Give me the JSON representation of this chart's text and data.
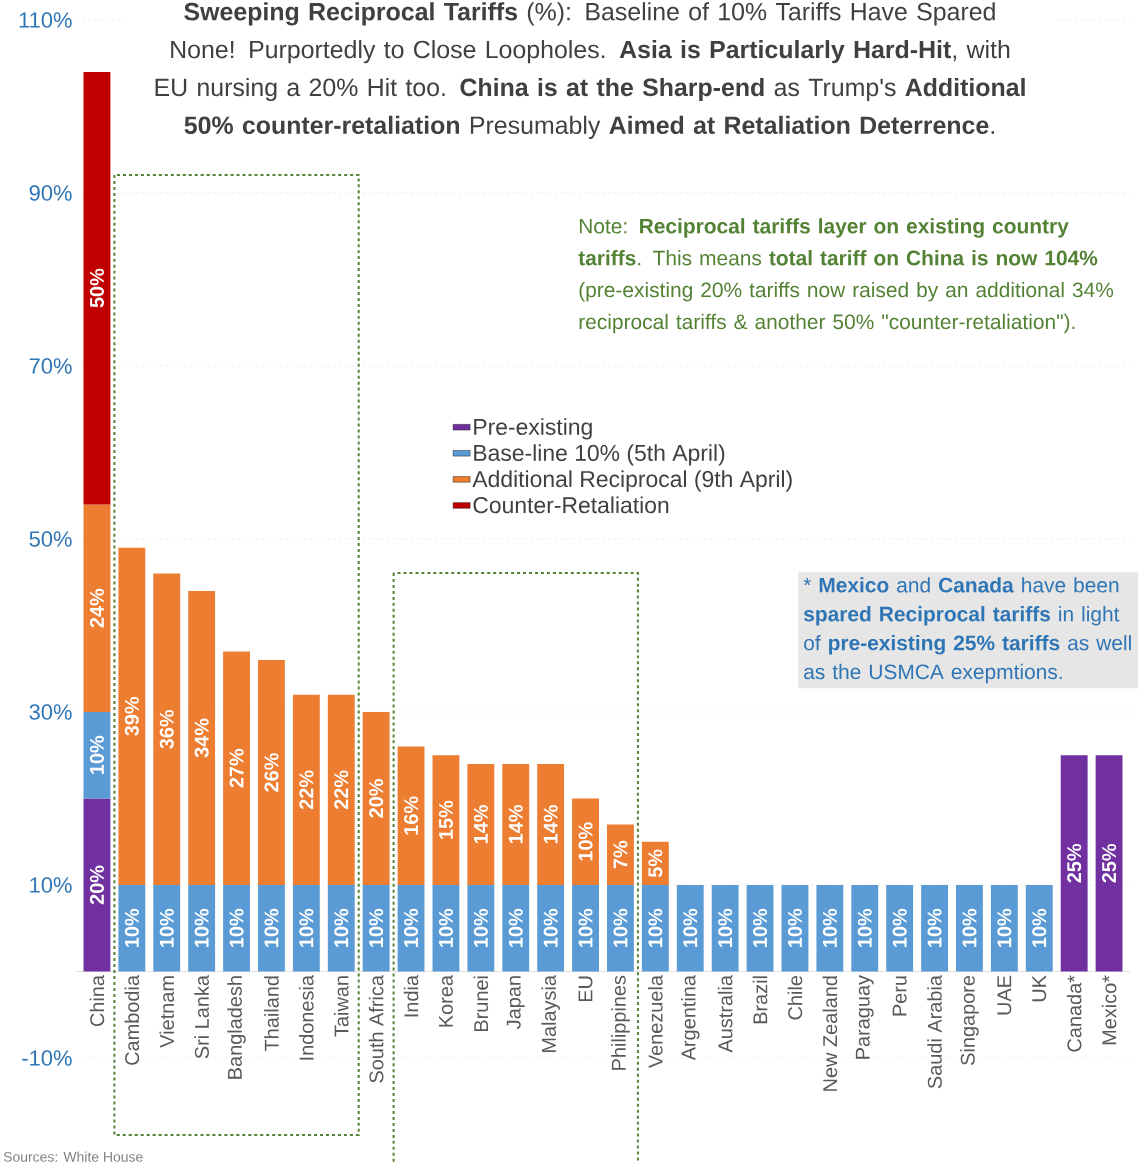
{
  "chart_data": {
    "type": "bar",
    "stacked": true,
    "title": "**Sweeping Reciprocal Tariffs** (%): Baseline of 10%  Tariffs Have Spared None! Purportedly to Close Loopholes. **Asia is Particularly Hard-Hit**, with EU nursing a 20% Hit too. **China is at the Sharp-end** as Trump's **Additional 50% counter-retaliation** Presumably **Aimed at Retaliation Deterrence**.",
    "categories": [
      "China",
      "Cambodia",
      "Vietnam",
      "Sri Lanka",
      "Bangladesh",
      "Thailand",
      "Indonesia",
      "Taiwan",
      "South Africa",
      "India",
      "Korea",
      "Brunei",
      "Japan",
      "Malaysia",
      "EU",
      "Philippines",
      "Venezuela",
      "Argentina",
      "Australia",
      "Brazil",
      "Chile",
      "New Zealand",
      "Paraguay",
      "Peru",
      "Saudi Arabia",
      "Singapore",
      "UAE",
      "UK",
      "Canada*",
      "Mexico*"
    ],
    "series": [
      {
        "name": "Pre-existing",
        "color": "#7030a0",
        "values": [
          20,
          null,
          null,
          null,
          null,
          null,
          null,
          null,
          null,
          null,
          null,
          null,
          null,
          null,
          null,
          null,
          null,
          null,
          null,
          null,
          null,
          null,
          null,
          null,
          null,
          null,
          null,
          null,
          25,
          25
        ],
        "value_labels": [
          "20%",
          null,
          null,
          null,
          null,
          null,
          null,
          null,
          null,
          null,
          null,
          null,
          null,
          null,
          null,
          null,
          null,
          null,
          null,
          null,
          null,
          null,
          null,
          null,
          null,
          null,
          null,
          null,
          "25%",
          "25%"
        ]
      },
      {
        "name": "Base-line 10% (5th April)",
        "color": "#5b9bd5",
        "values": [
          10,
          10,
          10,
          10,
          10,
          10,
          10,
          10,
          10,
          10,
          10,
          10,
          10,
          10,
          10,
          10,
          10,
          10,
          10,
          10,
          10,
          10,
          10,
          10,
          10,
          10,
          10,
          10,
          null,
          null
        ],
        "value_labels": [
          "10%",
          "10%",
          "10%",
          "10%",
          "10%",
          "10%",
          "10%",
          "10%",
          "10%",
          "10%",
          "10%",
          "10%",
          "10%",
          "10%",
          "10%",
          "10%",
          "10%",
          "10%",
          "10%",
          "10%",
          "10%",
          "10%",
          "10%",
          "10%",
          "10%",
          "10%",
          "10%",
          "10%",
          null,
          null
        ]
      },
      {
        "name": "Additional Reciprocal  (9th April)",
        "color": "#ed7d31",
        "values": [
          24,
          39,
          36,
          34,
          27,
          26,
          22,
          22,
          20,
          16,
          15,
          14,
          14,
          14,
          10,
          7,
          5,
          null,
          null,
          null,
          null,
          null,
          null,
          null,
          null,
          null,
          null,
          null,
          null,
          null
        ],
        "value_labels": [
          "24%",
          "39%",
          "36%",
          "34%",
          "27%",
          "26%",
          "22%",
          "22%",
          "20%",
          "16%",
          "15%",
          "14%",
          "14%",
          "14%",
          "10%",
          "7%",
          "5%",
          null,
          null,
          null,
          null,
          null,
          null,
          null,
          null,
          null,
          null,
          null,
          null,
          null
        ]
      },
      {
        "name": "Counter-Retaliation",
        "color": "#c00000",
        "values": [
          50,
          null,
          null,
          null,
          null,
          null,
          null,
          null,
          null,
          null,
          null,
          null,
          null,
          null,
          null,
          null,
          null,
          null,
          null,
          null,
          null,
          null,
          null,
          null,
          null,
          null,
          null,
          null,
          null,
          null
        ],
        "value_labels": [
          "50%",
          null,
          null,
          null,
          null,
          null,
          null,
          null,
          null,
          null,
          null,
          null,
          null,
          null,
          null,
          null,
          null,
          null,
          null,
          null,
          null,
          null,
          null,
          null,
          null,
          null,
          null,
          null,
          null,
          null
        ]
      }
    ],
    "ylim": [
      -10,
      110
    ],
    "yticks": [
      {
        "value": -10,
        "label": "-10%"
      },
      {
        "value": 10,
        "label": "10%"
      },
      {
        "value": 30,
        "label": "30%"
      },
      {
        "value": 50,
        "label": "50%"
      },
      {
        "value": 70,
        "label": "70%"
      },
      {
        "value": 90,
        "label": "90%"
      },
      {
        "value": 110,
        "label": "110%"
      }
    ],
    "grid": "y",
    "legend": "center",
    "annotations": [
      "Note: **Reciprocal tariffs layer on existing country tariffs**. This means **total tariff on China is now 104%** (pre-existing 20% tariffs now raised by an additional 34% reciprocal tariffs & another 50% \"counter-retaliation\").",
      "* **Mexico** and **Canada** have been **spared Reciprocal tariffs** in light of **pre-existing 25% tariffs** as well as the USMCA exepmtions.",
      "Sources: White House"
    ]
  }
}
